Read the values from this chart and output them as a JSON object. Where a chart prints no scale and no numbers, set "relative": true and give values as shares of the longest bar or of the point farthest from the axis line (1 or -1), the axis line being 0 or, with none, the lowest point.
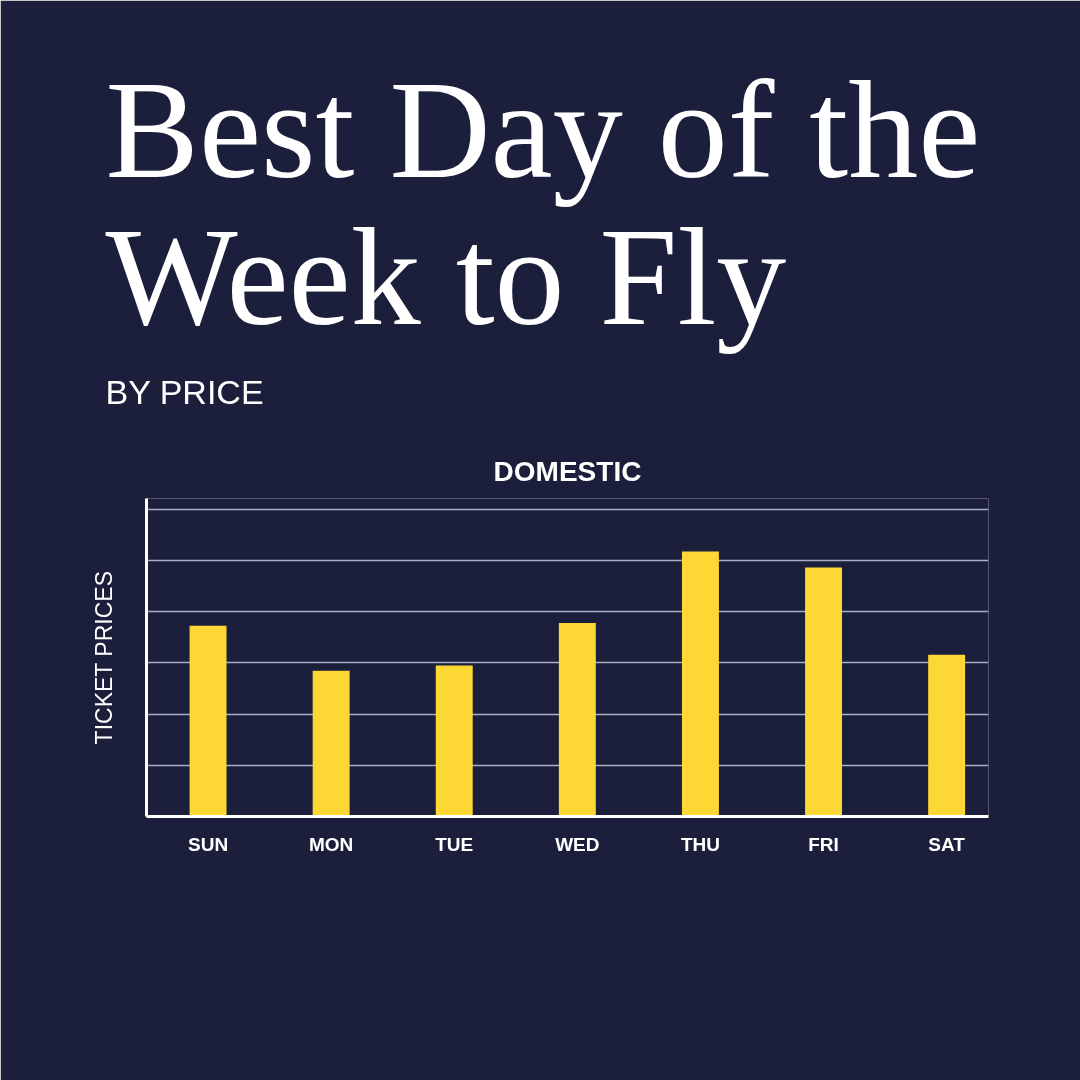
{
  "chart_data": {
    "type": "bar",
    "title": "Best Day of the Week to Fly",
    "subtitle": "BY PRICE",
    "annotations": [
      "DOMESTIC"
    ],
    "ylabel": "TICKET PRICES",
    "categories": [
      "SUN",
      "MON",
      "TUE",
      "WED",
      "THU",
      "FRI",
      "SAT"
    ],
    "values": [
      0.72,
      0.55,
      0.57,
      0.73,
      1,
      0.94,
      0.61
    ],
    "color": "#fdd835",
    "relative": true,
    "grid": "y"
  }
}
